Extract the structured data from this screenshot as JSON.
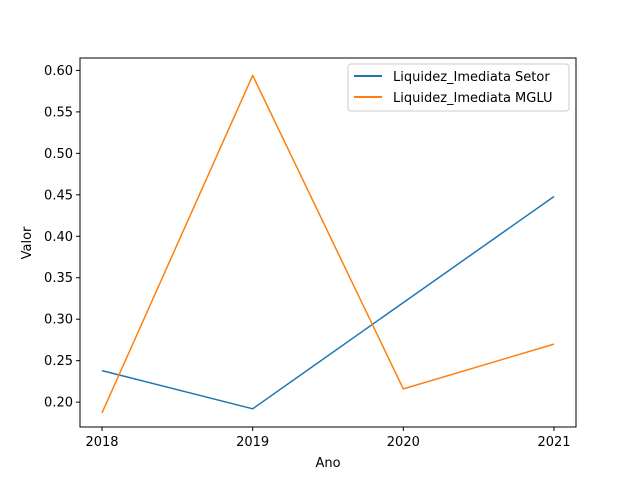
{
  "chart_data": {
    "type": "line",
    "title": "",
    "xlabel": "Ano",
    "ylabel": "Valor",
    "x": [
      "2018",
      "2019",
      "2020",
      "2021"
    ],
    "x_ticks": [
      "2018",
      "2019",
      "2020",
      "2021"
    ],
    "y_ticks": [
      "0.20",
      "0.25",
      "0.30",
      "0.35",
      "0.40",
      "0.45",
      "0.50",
      "0.55",
      "0.60"
    ],
    "ylim": [
      0.17,
      0.615
    ],
    "grid": false,
    "legend_position": "top-right",
    "series": [
      {
        "name": "Liquidez_Imediata Setor",
        "color": "#1f77b4",
        "values": [
          0.238,
          0.192,
          0.32,
          0.448
        ]
      },
      {
        "name": "Liquidez_Imediata MGLU",
        "color": "#ff7f0e",
        "values": [
          0.187,
          0.594,
          0.216,
          0.27
        ]
      }
    ]
  }
}
